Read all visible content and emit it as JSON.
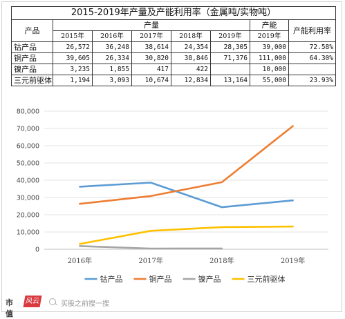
{
  "table": {
    "title": "2015-2019年产量及产能利用率（金属吨/实物吨）",
    "col_product": "产品",
    "col_output": "产量",
    "col_capacity": "产能",
    "col_util": "产能利用率",
    "years": [
      "2015年",
      "2016年",
      "2017年",
      "2018年",
      "2019年"
    ],
    "cap_year": "2019年",
    "rows": [
      {
        "name": "钴产品",
        "vals": [
          "26,572",
          "36,248",
          "38,614",
          "24,354",
          "28,305"
        ],
        "cap": "39,000",
        "util": "72.58%"
      },
      {
        "name": "铜产品",
        "vals": [
          "39,605",
          "26,334",
          "30,820",
          "38,846",
          "71,376"
        ],
        "cap": "111,000",
        "util": "64.30%"
      },
      {
        "name": "镍产品",
        "vals": [
          "3,235",
          "1,855",
          "417",
          "422",
          ""
        ],
        "cap": "10,000",
        "util": ""
      },
      {
        "name": "三元前驱体",
        "vals": [
          "1,194",
          "3,093",
          "10,674",
          "12,834",
          "13,164"
        ],
        "cap": "55,000",
        "util": "23.93%"
      }
    ]
  },
  "chart_data": {
    "type": "line",
    "categories": [
      "2016年",
      "2017年",
      "2018年",
      "2019年"
    ],
    "ylim": [
      0,
      80000
    ],
    "yticks": [
      "0",
      "10,000",
      "20,000",
      "30,000",
      "40,000",
      "50,000",
      "60,000",
      "70,000",
      "80,000"
    ],
    "grid": true,
    "legend_position": "bottom",
    "series": [
      {
        "name": "钴产品",
        "color": "#5b9bd5",
        "values": [
          36248,
          38614,
          24354,
          28305
        ]
      },
      {
        "name": "铜产品",
        "color": "#ed7d31",
        "values": [
          26334,
          30820,
          38846,
          71376
        ]
      },
      {
        "name": "镍产品",
        "color": "#a5a5a5",
        "values": [
          1855,
          417,
          422,
          null
        ]
      },
      {
        "name": "三元前驱体",
        "color": "#ffc000",
        "values": [
          3093,
          10674,
          12834,
          13164
        ]
      }
    ]
  },
  "footer": {
    "logo_text": "市值",
    "logo_mark": "风云",
    "search_text": "买股之前搜一搜"
  }
}
